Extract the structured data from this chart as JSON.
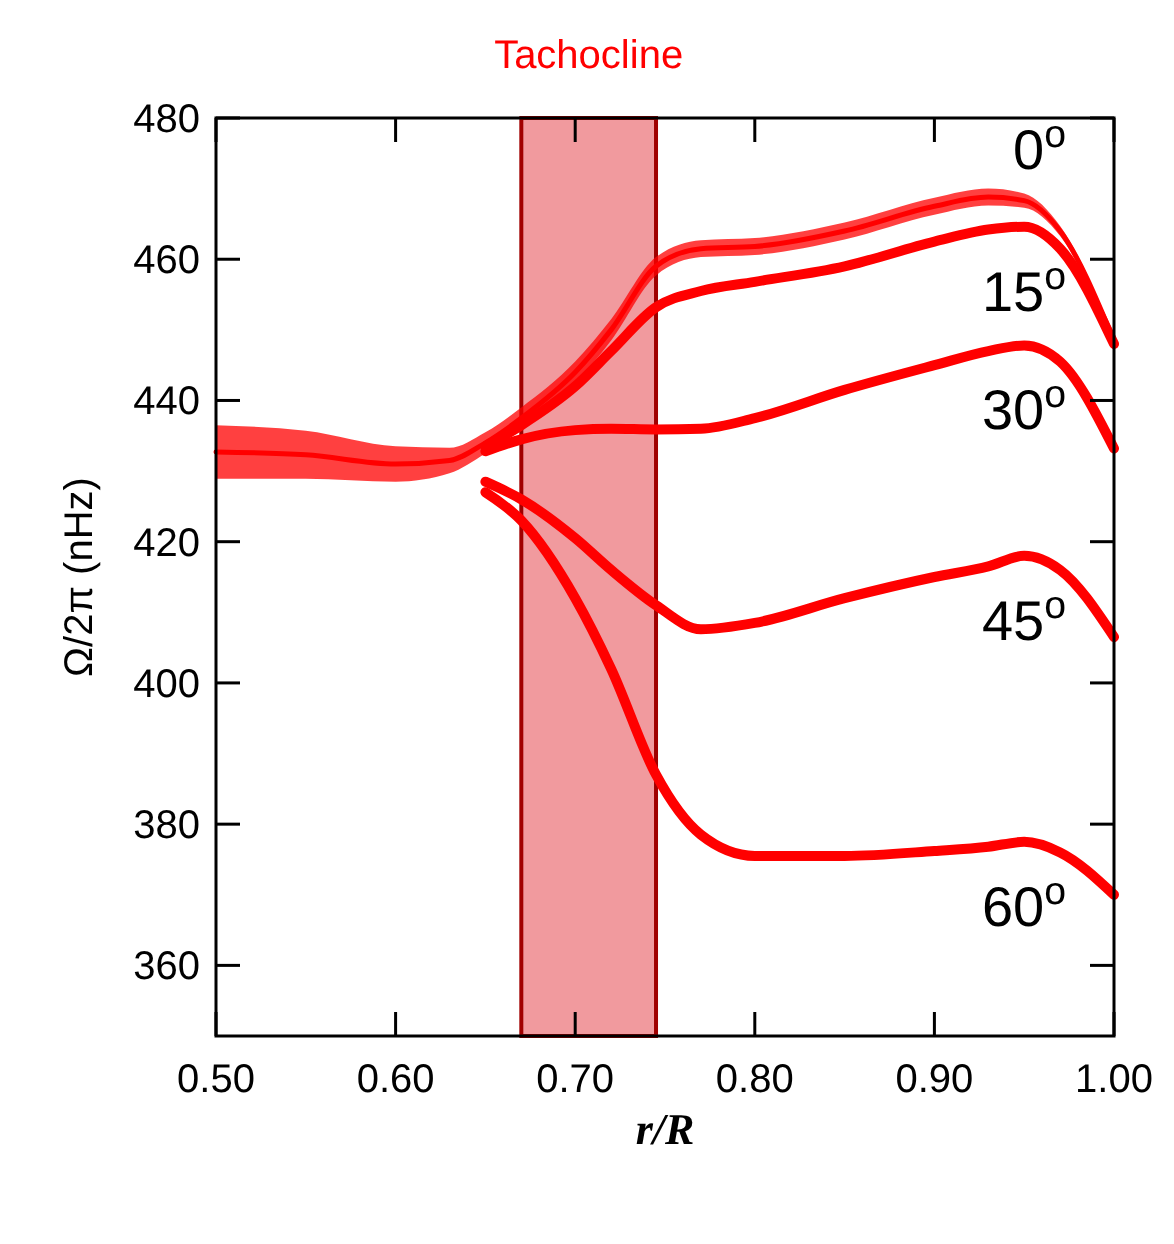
{
  "chart_data": {
    "type": "line",
    "xlabel": "r/R",
    "ylabel": "Ω/2π (nHz)",
    "xlim": [
      0.5,
      1.0
    ],
    "xticks": [
      {
        "value": 0.5,
        "label": "0.50"
      },
      {
        "value": 0.6,
        "label": "0.60"
      },
      {
        "value": 0.7,
        "label": "0.70"
      },
      {
        "value": 0.8,
        "label": "0.80"
      },
      {
        "value": 0.9,
        "label": "0.90"
      },
      {
        "value": 1.0,
        "label": "1.00"
      }
    ],
    "ylim": [
      350,
      480
    ],
    "yticks": [
      360,
      380,
      400,
      420,
      440,
      460,
      480
    ],
    "x": [
      0.5,
      0.55,
      0.6,
      0.63,
      0.65,
      0.67,
      0.7,
      0.72,
      0.745,
      0.77,
      0.8,
      0.85,
      0.9,
      0.93,
      0.95,
      0.97,
      1.0
    ],
    "bands": [
      {
        "axis": "x",
        "from": 0.67,
        "to": 0.745,
        "label": "Tachocline",
        "color": "#f19a9e"
      }
    ],
    "series": [
      {
        "name": "0$^{o}$",
        "color": "#ff0000",
        "values": [
          432.7,
          432.3,
          431,
          431.5,
          434,
          437.5,
          444,
          450,
          459,
          461.5,
          461.8,
          464,
          467.5,
          468.8,
          468.3,
          464,
          448.5
        ],
        "lower": [
          428.9,
          428.9,
          428.5,
          429.7,
          432.5,
          436,
          442.5,
          448.5,
          457.7,
          460.3,
          460.6,
          462.8,
          466.3,
          467.6,
          467.3,
          463.3,
          448
        ],
        "upper": [
          436.5,
          435.7,
          433.5,
          433.3,
          435.5,
          439,
          445.5,
          451.5,
          460.3,
          462.7,
          463,
          465.2,
          468.7,
          470,
          469.3,
          464.7,
          449
        ]
      },
      {
        "name": "15$^{o}$",
        "color": "#ff0000",
        "values": [
          null,
          null,
          null,
          null,
          433.5,
          436.5,
          442,
          447,
          453.2,
          455.5,
          456.8,
          459,
          462.5,
          464.2,
          464.6,
          461.5,
          448
        ]
      },
      {
        "name": "30$^{o}$",
        "color": "#ff0000",
        "values": [
          null,
          null,
          null,
          null,
          432.8,
          434.5,
          435.8,
          436,
          435.9,
          436,
          437.5,
          441.5,
          445,
          447,
          447.8,
          445.5,
          433.2
        ]
      },
      {
        "name": "45$^{o}$",
        "color": "#ff0000",
        "values": [
          null,
          null,
          null,
          null,
          428.5,
          426,
          420.5,
          416,
          411,
          407.6,
          408.5,
          412,
          415,
          416.5,
          418,
          416,
          406.5
        ]
      },
      {
        "name": "60$^{o}$",
        "color": "#ff0000",
        "values": [
          null,
          null,
          null,
          null,
          427,
          423,
          412,
          402,
          387,
          378.5,
          375.5,
          375.5,
          376.2,
          376.8,
          377.5,
          376,
          370
        ]
      }
    ]
  }
}
